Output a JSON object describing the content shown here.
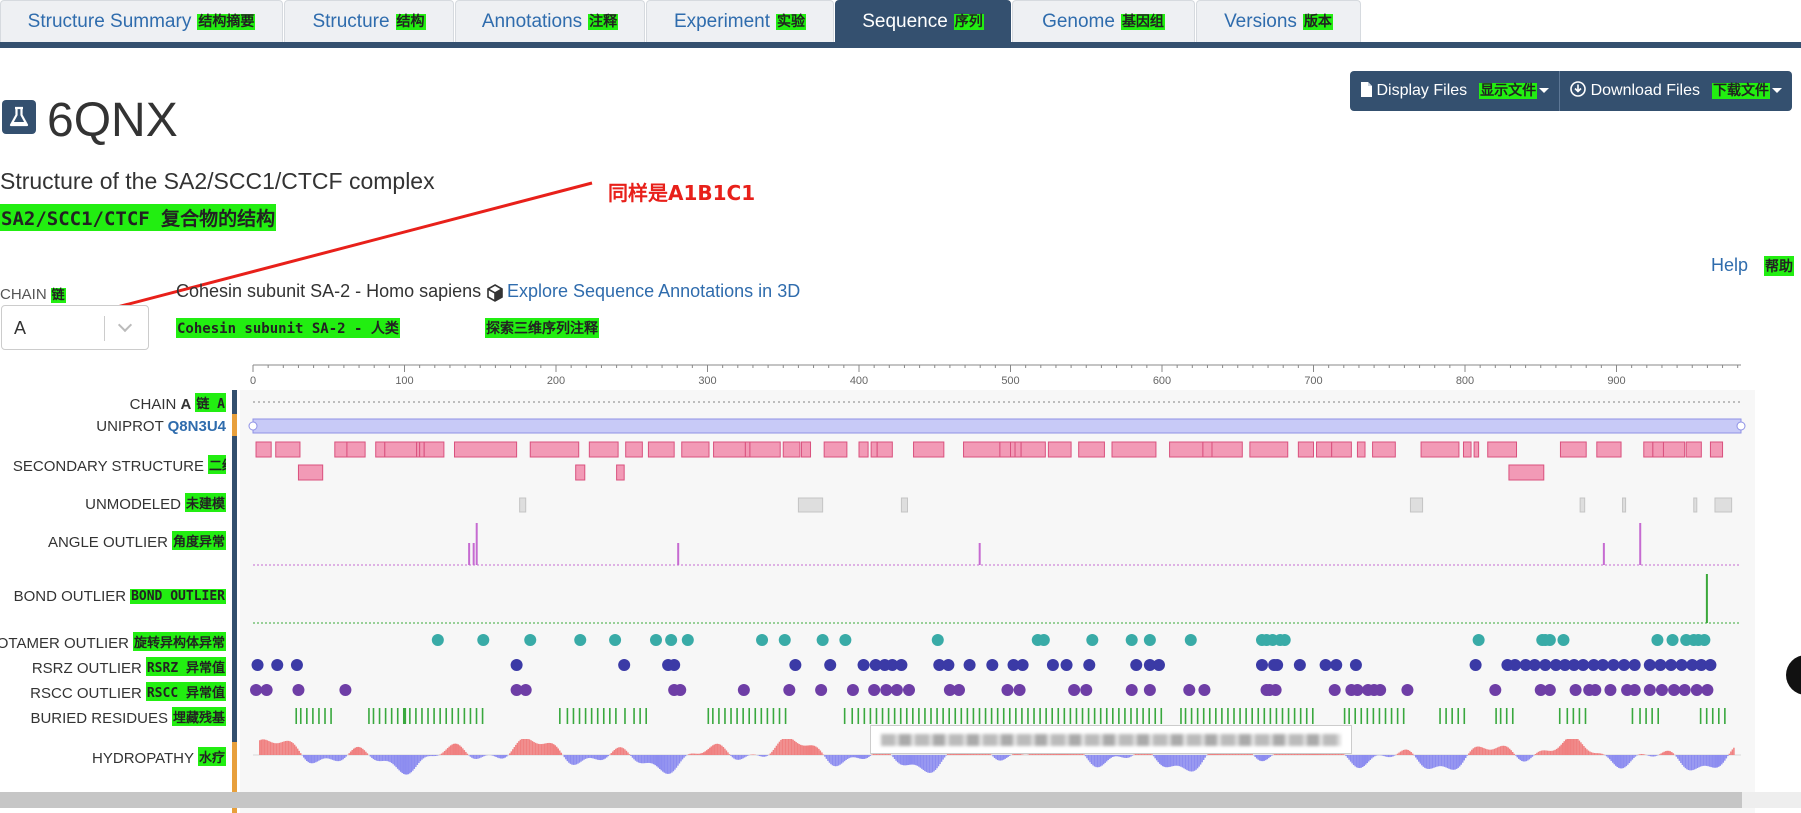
{
  "tabs": [
    {
      "label": "Structure Summary",
      "cn": "结构摘要"
    },
    {
      "label": "Structure",
      "cn": "结构"
    },
    {
      "label": "Annotations",
      "cn": "注释"
    },
    {
      "label": "Experiment",
      "cn": "实验"
    },
    {
      "label": "Sequence",
      "cn": "序列"
    },
    {
      "label": "Genome",
      "cn": "基因组"
    },
    {
      "label": "Versions",
      "cn": "版本"
    }
  ],
  "active_tab": "Sequence",
  "buttons": {
    "display_files": "Display Files",
    "display_files_cn": "显示文件",
    "download_files": "Download Files",
    "download_files_cn": "下载文件"
  },
  "entry": {
    "id": "6QNX",
    "title": "Structure of the SA2/SCC1/CTCF complex",
    "title_cn": "SA2/SCC1/CTCF 复合物的结构"
  },
  "annotation_note": "同样是A1B1C1",
  "help": {
    "label": "Help",
    "cn": "帮助"
  },
  "chain": {
    "label": "CHAIN",
    "label_cn": "链",
    "selected": "A",
    "molecule": "Cohesin subunit SA-2 - Homo sapiens",
    "molecule_cn": "Cohesin subunit SA-2 - 人类",
    "explore_link": "Explore Sequence Annotations in 3D",
    "explore_link_cn": "探索三维序列注释"
  },
  "ruler": {
    "ticks": [
      "0",
      "100",
      "200",
      "300",
      "400",
      "500",
      "600",
      "700",
      "800",
      "900"
    ]
  },
  "tracks": {
    "chain": {
      "label": "CHAIN",
      "value": "A",
      "cn": "链 A"
    },
    "uniprot": {
      "label": "UNIPROT",
      "accession": "Q8N3U4"
    },
    "secondary": {
      "label": "SECONDARY STRUCTURE",
      "cn": "二级结构"
    },
    "unmodeled": {
      "label": "UNMODELED",
      "cn": "未建模"
    },
    "angle": {
      "label": "ANGLE OUTLIER",
      "cn": "角度异常"
    },
    "bond": {
      "label": "BOND OUTLIER",
      "cn": "BOND OUTLIER"
    },
    "rotamer": {
      "label": "ROTAMER OUTLIER",
      "cn": "旋转异构体异常"
    },
    "rsrz": {
      "label": "RSRZ OUTLIER",
      "cn": "RSRZ 异常值"
    },
    "rscc": {
      "label": "RSCC OUTLIER",
      "cn": "RSCC 异常值"
    },
    "buried": {
      "label": "BURIED RESIDUES",
      "cn": "埋藏残基"
    },
    "hydropathy": {
      "label": "HYDROPATHY",
      "cn": "水疗"
    }
  },
  "colors": {
    "navy": "#34506f",
    "link": "#2f6cad",
    "helix": "#f29ab6",
    "helix_border": "#d9517e",
    "teal": "#39aba7",
    "indigo": "#3b3aa6",
    "purple": "#6e3ea6",
    "green": "#39a83e",
    "angle": "#c66bd1",
    "hydro_pos": "#f08080",
    "hydro_neg": "#8c8cf0",
    "annotation": "#e8201a"
  },
  "icons": [
    "flask-icon",
    "cube-icon",
    "file-icon",
    "download-icon",
    "caret-icon",
    "chevron-down-icon"
  ]
}
